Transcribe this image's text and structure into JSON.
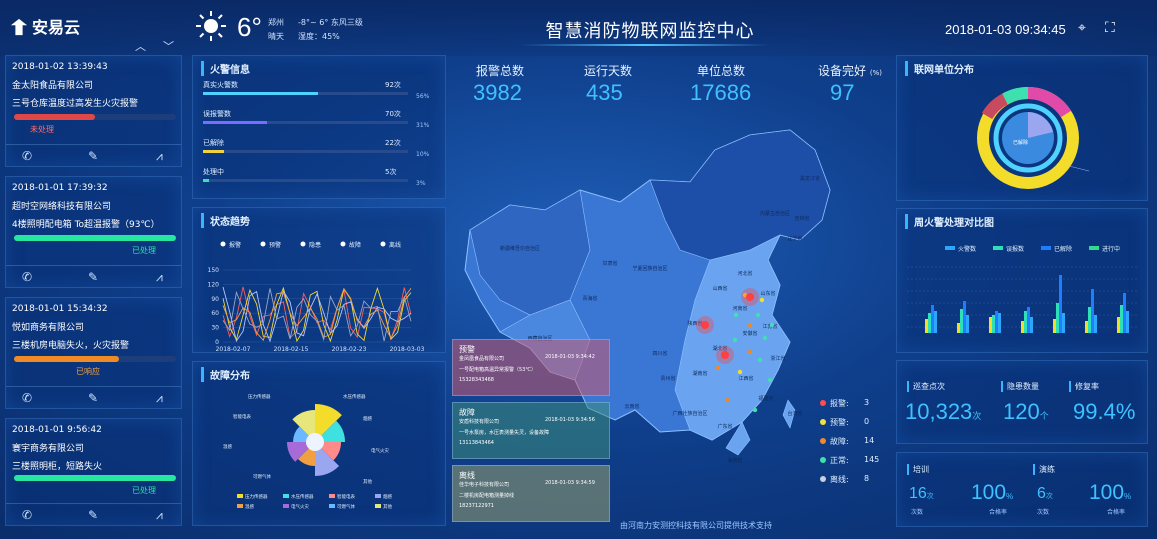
{
  "header": {
    "logo_text": "安易云",
    "temperature": "6°",
    "city": "郑州",
    "temp_range": "-8°~ 6° 东风三级",
    "sky": "晴天",
    "humidity": "湿度：45%",
    "title": "智慧消防物联网监控中心",
    "datetime": "2018-01-03 09:34:45"
  },
  "alarm_cards": [
    {
      "time": "2018-01-02 13:39:43",
      "company": "金太阳食品有限公司",
      "desc": "三号仓库温度过高发生火灾报警",
      "status": "未处理",
      "progress": 0.5,
      "color": "#e04848"
    },
    {
      "time": "2018-01-01 17:39:32",
      "company": "超时空网络科技有限公司",
      "desc": "4楼照明配电箱 To超温报警（93℃）",
      "status": "已处理",
      "progress": 1.0,
      "color": "#26e6a0"
    },
    {
      "time": "2018-01-01 15:34:32",
      "company": "悦如商务有限公司",
      "desc": "三楼机房电脑失火，火灾报警",
      "status": "已响应",
      "progress": 0.65,
      "color": "#f08a24"
    },
    {
      "time": "2018-01-01 9:56:42",
      "company": "寰宇商务有限公司",
      "desc": "三楼照明柜，短路失火",
      "status": "已处理",
      "progress": 1.0,
      "color": "#26e6a0"
    }
  ],
  "fire_info": {
    "title": "火警信息",
    "rows": [
      {
        "label": "真实火警数",
        "value": "92次",
        "pct": "56%",
        "fraction": 0.56,
        "color": "#4fd2ff"
      },
      {
        "label": "误报警数",
        "value": "70次",
        "pct": "31%",
        "fraction": 0.31,
        "color": "#7b6cff"
      },
      {
        "label": "已解除",
        "value": "22次",
        "pct": "10%",
        "fraction": 0.1,
        "color": "#f2d23a"
      },
      {
        "label": "处理中",
        "value": "5次",
        "pct": "3%",
        "fraction": 0.03,
        "color": "#3ee0b0"
      }
    ]
  },
  "trend": {
    "title": "状态趋势",
    "legend": [
      "报警",
      "预警",
      "隐患",
      "故障",
      "离线"
    ],
    "yticks": [
      "150",
      "120",
      "90",
      "60",
      "30",
      "0"
    ],
    "xticks": [
      "2018-02-07",
      "2018-02-15",
      "2018-02-23",
      "2018-03-03"
    ]
  },
  "fault": {
    "title": "故障分布",
    "labels": [
      "压力传感器",
      "水压传感器",
      "智能电表",
      "烟感",
      "温感",
      "电气火灾",
      "可燃气体",
      "其他"
    ]
  },
  "kpis": [
    {
      "label": "报警总数",
      "value": "3982"
    },
    {
      "label": "运行天数",
      "value": "435"
    },
    {
      "label": "单位总数",
      "value": "17686"
    },
    {
      "label": "设备完好",
      "unit": "(%)",
      "value": "97"
    }
  ],
  "map": {
    "provinces": [
      "新疆维吾尔自治区",
      "西藏自治区",
      "青海省",
      "甘肃省",
      "内蒙古自治区",
      "黑龙江省",
      "吉林省",
      "辽宁省",
      "河北省",
      "山西省",
      "陕西省",
      "四川省",
      "云南省",
      "贵州省",
      "广西壮族自治区",
      "广东省",
      "湖南省",
      "湖北省",
      "河南省",
      "山东省",
      "江苏省",
      "安徽省",
      "江西省",
      "浙江省",
      "福建省",
      "台湾省",
      "海南省",
      "宁夏回族自治区"
    ],
    "legend": [
      {
        "label": "报警:",
        "value": "3",
        "color": "#ff4d4d"
      },
      {
        "label": "预警:",
        "value": "0",
        "color": "#f0e040"
      },
      {
        "label": "故障:",
        "value": "14",
        "color": "#f08a24"
      },
      {
        "label": "正常:",
        "value": "145",
        "color": "#3ee0b0"
      },
      {
        "label": "离线:",
        "value": "8",
        "color": "#c8d0dc"
      }
    ]
  },
  "info_boxes": [
    {
      "type": "预警",
      "date": "2018-01-03 9:34:42",
      "lines": [
        "金凤凰食品有限公司",
        "一号配电箱高温异常报警（53℃）",
        "15328343468"
      ],
      "color": "rgba(200,90,110,0.55)"
    },
    {
      "type": "故障",
      "date": "2018-01-03 9:34:56",
      "lines": [
        "安盾科技有限公司",
        "一号水泵房，水压表测量失灵，设备故障",
        "13113843464"
      ],
      "color": "rgba(60,140,120,0.55)"
    },
    {
      "type": "离线",
      "date": "2018-01-03 9:34:59",
      "lines": [
        "佳华电子科技有限公司",
        "二楼机房配电箱测量掉线",
        "18237122971"
      ],
      "color": "rgba(150,160,110,0.55)"
    }
  ],
  "unit_dist": {
    "title": "联网单位分布",
    "inner_label": "已解除"
  },
  "week_chart": {
    "title": "周火警处理对比图",
    "legend": [
      {
        "label": "火警数",
        "color": "#2aa8ff"
      },
      {
        "label": "误报数",
        "color": "#2de0b8"
      },
      {
        "label": "已解除",
        "color": "#1f7dff"
      },
      {
        "label": "进行中",
        "color": "#32d98a"
      }
    ]
  },
  "inspection": {
    "labels": [
      "巡查点次",
      "隐患数量",
      "修复率"
    ],
    "values": [
      "10,323",
      "120",
      "99.4%"
    ],
    "units": [
      "次",
      "个",
      ""
    ]
  },
  "training": {
    "labels": [
      "培训",
      "演练"
    ],
    "count1": "16",
    "unit1": "次",
    "sub1": "次数",
    "rate1": "100",
    "runit1": "%",
    "rsub1": "合格率",
    "count2": "6",
    "unit2": "次",
    "sub2": "次数",
    "rate2": "100",
    "runit2": "%",
    "rsub2": "合格率"
  },
  "credit": "由河南力安测控科技有限公司提供技术支持"
}
